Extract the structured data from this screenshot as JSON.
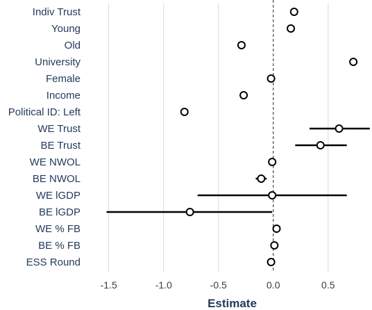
{
  "chart_data": {
    "type": "scatter",
    "xlabel": "Estimate",
    "xlim": [
      -1.65,
      0.9
    ],
    "xticks": [
      -1.5,
      -1.0,
      -0.5,
      0.0,
      0.5
    ],
    "xtick_labels": [
      "-1.5",
      "-1.0",
      "-0.5",
      "0.0",
      "0.5"
    ],
    "reference_line": 0,
    "grid": "vertical",
    "terms": [
      {
        "label": "Indiv Trust",
        "estimate": 0.19,
        "lower": 0.19,
        "upper": 0.19
      },
      {
        "label": "Young",
        "estimate": 0.16,
        "lower": 0.16,
        "upper": 0.16
      },
      {
        "label": "Old",
        "estimate": -0.29,
        "lower": -0.29,
        "upper": -0.29
      },
      {
        "label": "University",
        "estimate": 0.73,
        "lower": 0.73,
        "upper": 0.73
      },
      {
        "label": "Female",
        "estimate": -0.02,
        "lower": -0.02,
        "upper": -0.02
      },
      {
        "label": "Income",
        "estimate": -0.27,
        "lower": -0.27,
        "upper": -0.27
      },
      {
        "label": "Political ID: Left",
        "estimate": -0.81,
        "lower": -0.81,
        "upper": -0.81
      },
      {
        "label": "WE Trust",
        "estimate": 0.6,
        "lower": 0.33,
        "upper": 0.88
      },
      {
        "label": "BE Trust",
        "estimate": 0.43,
        "lower": 0.2,
        "upper": 0.67
      },
      {
        "label": "WE NWOL",
        "estimate": -0.01,
        "lower": -0.01,
        "upper": -0.01
      },
      {
        "label": "BE NWOL",
        "estimate": -0.11,
        "lower": -0.16,
        "upper": -0.06
      },
      {
        "label": "WE lGDP",
        "estimate": -0.01,
        "lower": -0.69,
        "upper": 0.67
      },
      {
        "label": "BE lGDP",
        "estimate": -0.76,
        "lower": -1.52,
        "upper": -0.01
      },
      {
        "label": "WE % FB",
        "estimate": 0.03,
        "lower": 0.03,
        "upper": 0.03
      },
      {
        "label": "BE % FB",
        "estimate": 0.01,
        "lower": 0.01,
        "upper": 0.01
      },
      {
        "label": "ESS Round",
        "estimate": -0.02,
        "lower": -0.02,
        "upper": -0.02
      }
    ],
    "colors": {
      "label": "#253a5c",
      "tick": "#3c3c3c",
      "grid": "#d9d9d9",
      "point_fill": "#ffffff",
      "point_stroke": "#000000",
      "reference": "#333333"
    }
  }
}
